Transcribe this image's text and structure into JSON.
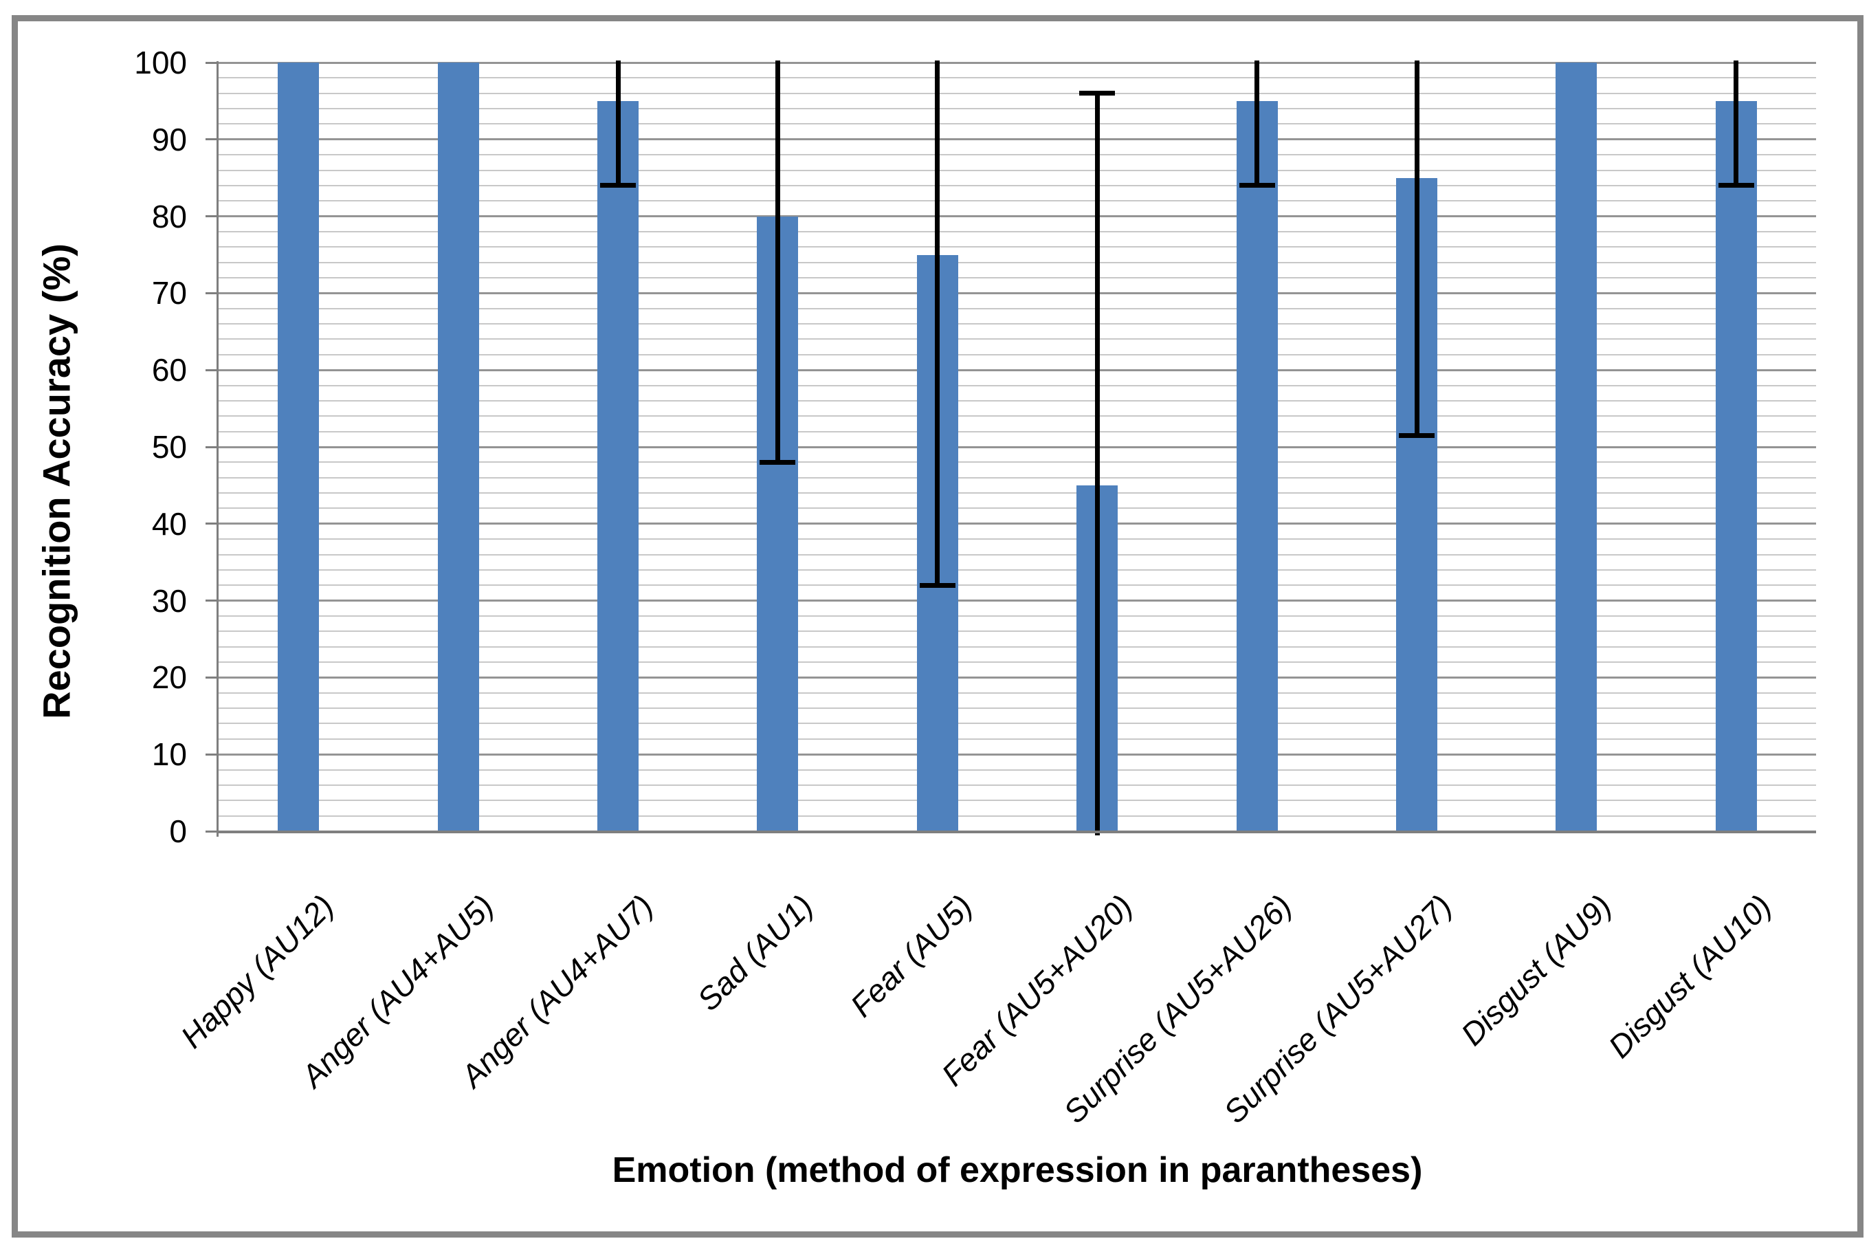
{
  "chart_data": {
    "type": "bar",
    "title": "",
    "xlabel": "Emotion (method of expression in parantheses)",
    "ylabel": "Recognition Accuracy (%)",
    "categories": [
      "Happy (AU12)",
      "Anger (AU4+AU5)",
      "Anger (AU4+AU7)",
      "Sad (AU1)",
      "Fear (AU5)",
      "Fear (AU5+AU20)",
      "Surprise (AU5+AU26)",
      "Surprise (AU5+AU27)",
      "Disgust (AU9)",
      "Disgust (AU10)"
    ],
    "values": [
      100,
      100,
      95,
      80,
      75,
      45,
      95,
      85,
      100,
      95
    ],
    "error_minus": [
      null,
      null,
      11,
      32,
      43,
      51,
      11,
      33.5,
      null,
      11
    ],
    "error_plus": [
      null,
      null,
      11,
      32,
      43,
      51,
      11,
      33.5,
      null,
      11
    ],
    "error_low_caps_visible": [
      null,
      null,
      84,
      48,
      32,
      null,
      84,
      51.5,
      null,
      84
    ],
    "error_high_caps_visible": [
      null,
      null,
      null,
      null,
      null,
      96,
      null,
      null,
      null,
      null
    ],
    "ylim": [
      0,
      100
    ],
    "y_major_ticks": [
      0,
      10,
      20,
      30,
      40,
      50,
      60,
      70,
      80,
      90,
      100
    ],
    "y_minor_step": 2,
    "grid": "horizontal-minor-and-major",
    "legend": "none",
    "colors": {
      "bar": "#4f81bd",
      "error_bar": "#000000",
      "gridline_minor": "#c8c8c8",
      "gridline_major": "#949494",
      "axis": "#7f7f7f",
      "border": "#868686"
    }
  }
}
